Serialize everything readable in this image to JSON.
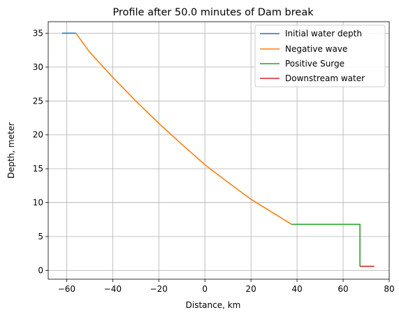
{
  "chart_data": {
    "type": "line",
    "title": "Profile after 50.0 minutes of Dam break",
    "xlabel": "Distance, km",
    "ylabel": "Depth, meter",
    "xlim": [
      -68,
      80
    ],
    "ylim": [
      -1.3,
      36.7
    ],
    "xticks": [
      -60,
      -40,
      -20,
      0,
      20,
      40,
      60,
      80
    ],
    "yticks": [
      0,
      5,
      10,
      15,
      20,
      25,
      30,
      35
    ],
    "xtick_labels": [
      "−60",
      "−40",
      "−20",
      "0",
      "20",
      "40",
      "60",
      "80"
    ],
    "ytick_labels": [
      "0",
      "5",
      "10",
      "15",
      "20",
      "25",
      "30",
      "35"
    ],
    "grid": true,
    "legend_position": "top-right",
    "series": [
      {
        "name": "Initial water depth",
        "color": "#1f77b4",
        "x": [
          -62,
          -56
        ],
        "y": [
          35,
          35
        ]
      },
      {
        "name": "Negative wave",
        "color": "#ff7f0e",
        "x": [
          -56,
          -50,
          -40,
          -30,
          -20,
          -10,
          0,
          10,
          20,
          30,
          37.6
        ],
        "y": [
          35,
          32.2,
          28.5,
          25.0,
          21.7,
          18.6,
          15.6,
          13.0,
          10.5,
          8.4,
          6.8
        ]
      },
      {
        "name": "Positive Surge",
        "color": "#2ca02c",
        "x": [
          37.6,
          67.3,
          67.3
        ],
        "y": [
          6.8,
          6.8,
          0.6
        ]
      },
      {
        "name": "Downstream water",
        "color": "#d62728",
        "x": [
          67.3,
          73.5
        ],
        "y": [
          0.6,
          0.6
        ]
      }
    ]
  }
}
